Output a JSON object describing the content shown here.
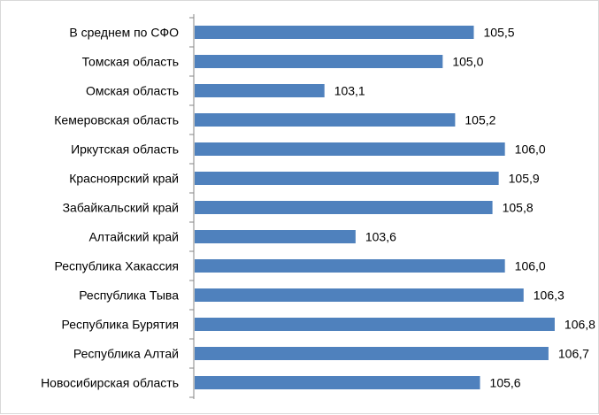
{
  "chart_data": {
    "type": "bar",
    "orientation": "horizontal",
    "categories": [
      "В среднем по СФО",
      "Томская область",
      "Омская область",
      "Кемеровская область",
      "Иркутская область",
      "Красноярский край",
      "Забайкальский край",
      "Алтайский край",
      "Республика Хакассия",
      "Республика Тыва",
      "Республика Бурятия",
      "Республика Алтай",
      "Новосибирская область"
    ],
    "values": [
      105.5,
      105.0,
      103.1,
      105.2,
      106.0,
      105.9,
      105.8,
      103.6,
      106.0,
      106.3,
      106.8,
      106.7,
      105.6
    ],
    "value_labels": [
      "105,5",
      "105,0",
      "103,1",
      "105,2",
      "106,0",
      "105,9",
      "105,8",
      "103,6",
      "106,0",
      "106,3",
      "106,8",
      "106,7",
      "105,6"
    ],
    "xlim": [
      101.0,
      107.0
    ],
    "bar_color": "#4f81bd",
    "axis_color": "#868686",
    "grid": false,
    "legend": false
  }
}
